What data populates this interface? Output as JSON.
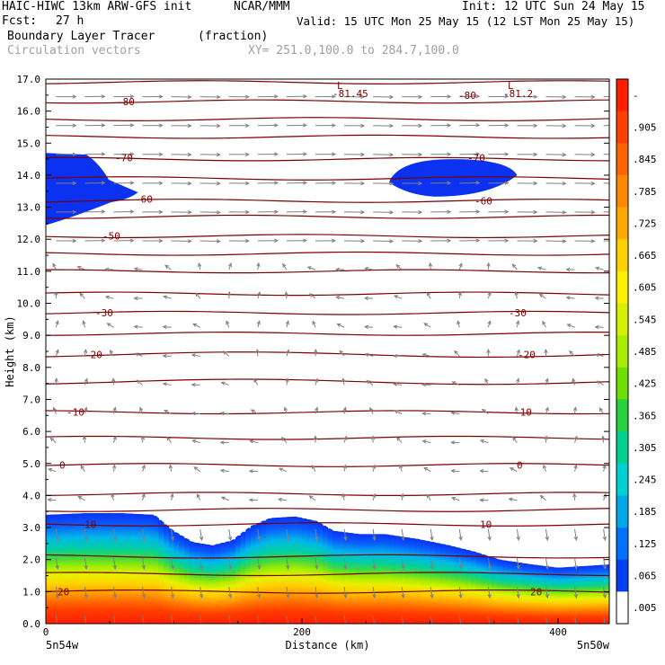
{
  "header": {
    "model": "HAIC-HIWC 13km ARW-GFS init",
    "org": "NCAR/MMM",
    "init": "Init: 12 UTC Sun 24 May 15",
    "fcst_label": "Fcst:",
    "fcst_value": "27 h",
    "valid": "Valid: 15 UTC Mon 25 May 15 (12 LST Mon 25 May 15)",
    "field1": "Boundary Layer Tracer",
    "field1_units": "(fraction)",
    "field2": "Circulation vectors",
    "xy": "XY= 251.0,100.0 to 284.7,100.0"
  },
  "chart_data": {
    "type": "heatmap",
    "xlabel": "Distance (km)",
    "ylabel": "Height (km)",
    "xlim": [
      0,
      440
    ],
    "ylim": [
      0,
      17
    ],
    "x_ticks": [
      0,
      200,
      400
    ],
    "y_ticks": [
      "0.0",
      "1.0",
      "2.0",
      "3.0",
      "4.0",
      "5.0",
      "6.0",
      "7.0",
      "8.0",
      "9.0",
      "10.0",
      "11.0",
      "12.0",
      "13.0",
      "14.0",
      "15.0",
      "16.0",
      "17.0"
    ],
    "x_end_labels": {
      "left": "5n54w",
      "right": "5n50w"
    },
    "colorbar": {
      "labels": [
        "-",
        ".905",
        ".845",
        ".785",
        ".725",
        ".665",
        ".605",
        ".545",
        ".485",
        ".425",
        ".365",
        ".305",
        ".245",
        ".185",
        ".125",
        ".065",
        ".005"
      ],
      "colors": [
        "#ff1e00",
        "#ff4000",
        "#ff6400",
        "#ff8800",
        "#ffaa00",
        "#ffd000",
        "#fff000",
        "#d4f000",
        "#a8ec00",
        "#6ee000",
        "#28d040",
        "#00d090",
        "#00d0d0",
        "#00a8e8",
        "#0070ff",
        "#0040f0",
        "#ffffff"
      ]
    },
    "temperature_contours": [
      {
        "value": 20,
        "height_km": 1.0
      },
      {
        "value": 10,
        "height_km": 3.1
      },
      {
        "value": 0,
        "height_km": 4.95
      },
      {
        "value": -10,
        "height_km": 6.6
      },
      {
        "value": -20,
        "height_km": 8.4
      },
      {
        "value": -30,
        "height_km": 9.7
      },
      {
        "value": -50,
        "height_km": 12.1
      },
      {
        "value": -60,
        "height_km": 13.2
      },
      {
        "value": -70,
        "height_km": 14.5
      },
      {
        "value": -80,
        "height_km": 16.3
      }
    ],
    "contour_labels": [
      "-80",
      "-80",
      "-81.45",
      "-81.2",
      "-70",
      "-70",
      "-60",
      "-60",
      "-50",
      "-30",
      "-30",
      "-20",
      "-20",
      "-10",
      "-10",
      "0",
      "0",
      "10",
      "10",
      "20",
      "20"
    ],
    "min_labels": [
      "L",
      "L"
    ],
    "boundary_layer_top_km": [
      [
        0,
        3.4
      ],
      [
        30,
        3.45
      ],
      [
        60,
        3.45
      ],
      [
        85,
        3.4
      ],
      [
        100,
        2.9
      ],
      [
        115,
        2.55
      ],
      [
        130,
        2.45
      ],
      [
        145,
        2.6
      ],
      [
        160,
        3.05
      ],
      [
        175,
        3.3
      ],
      [
        195,
        3.35
      ],
      [
        212,
        3.2
      ],
      [
        225,
        2.9
      ],
      [
        245,
        2.8
      ],
      [
        265,
        2.8
      ],
      [
        290,
        2.65
      ],
      [
        315,
        2.45
      ],
      [
        335,
        2.25
      ],
      [
        355,
        2.0
      ],
      [
        380,
        1.85
      ],
      [
        400,
        1.75
      ],
      [
        440,
        1.85
      ]
    ],
    "upper_tracer_patches": [
      {
        "x_range": [
          0,
          72
        ],
        "height_range": [
          12.4,
          14.7
        ]
      },
      {
        "x_range": [
          268,
          368
        ],
        "height_range": [
          13.5,
          14.5
        ]
      }
    ]
  }
}
